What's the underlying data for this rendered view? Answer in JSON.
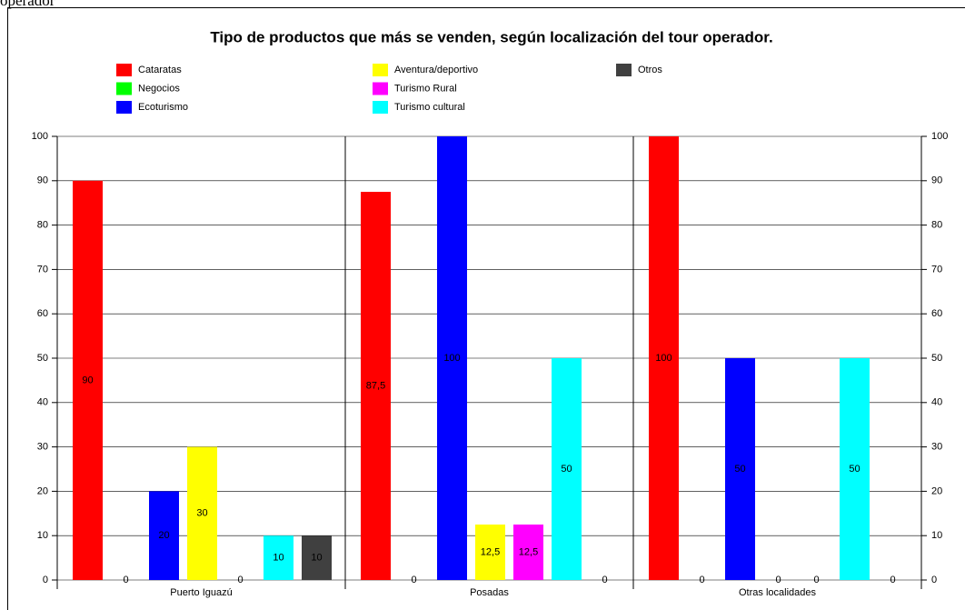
{
  "fragment": "operador",
  "chart_data": {
    "type": "bar",
    "title": "Tipo de productos que más se venden, según localización del tour operador.",
    "categories": [
      "Puerto Iguazú",
      "Posadas",
      "Otras localidades"
    ],
    "series": [
      {
        "name": "Cataratas",
        "color": "#ff0000",
        "values": [
          90,
          87.5,
          100
        ],
        "value_labels": [
          "90",
          "87,5",
          "100"
        ]
      },
      {
        "name": "Negocios",
        "color": "#00ff00",
        "values": [
          0,
          0,
          0
        ]
      },
      {
        "name": "Ecoturismo",
        "color": "#0000ff",
        "values": [
          20,
          100,
          50
        ]
      },
      {
        "name": "Aventura/deportivo",
        "color": "#ffff00",
        "values": [
          30,
          12.5,
          0
        ],
        "value_labels": [
          "30",
          "12,5",
          "0"
        ]
      },
      {
        "name": "Turismo Rural",
        "color": "#ff00ff",
        "values": [
          0,
          12.5,
          0
        ],
        "value_labels": [
          "0",
          "12,5",
          "0"
        ]
      },
      {
        "name": "Turismo cultural",
        "color": "#00ffff",
        "values": [
          10,
          50,
          50
        ]
      },
      {
        "name": "Otros",
        "color": "#404040",
        "values": [
          10,
          0,
          0
        ]
      }
    ],
    "ylim": [
      0,
      100
    ],
    "yticks": [
      0,
      10,
      20,
      30,
      40,
      50,
      60,
      70,
      80,
      90,
      100
    ],
    "grid": true
  }
}
